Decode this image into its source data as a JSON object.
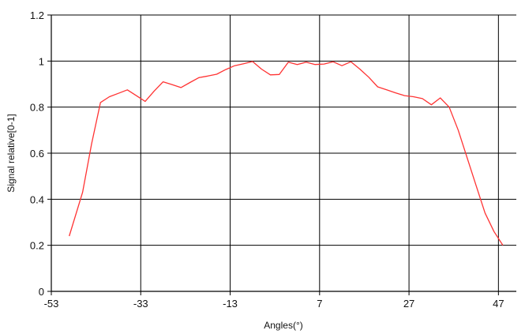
{
  "chart_data": {
    "type": "line",
    "title": "",
    "xlabel": "Angles(°)",
    "ylabel": "Signal relative[0-1]",
    "xlim": [
      -53,
      51
    ],
    "ylim": [
      0,
      1.2
    ],
    "xticks": [
      -53,
      -33,
      -13,
      7,
      27,
      47
    ],
    "xtick_labels": [
      "-53",
      "-33",
      "-13",
      "7",
      "27",
      "47"
    ],
    "yticks": [
      0,
      0.2,
      0.4,
      0.6,
      0.8,
      1,
      1.2
    ],
    "ytick_labels": [
      "0",
      "0.2",
      "0.4",
      "0.6",
      "0.8",
      "1",
      "1.2"
    ],
    "grid": true,
    "line_color": "#ff3333",
    "series": [
      {
        "x": [
          -49,
          -46,
          -44,
          -42,
          -40,
          -38,
          -36,
          -34,
          -32,
          -30,
          -28,
          -26,
          -24,
          -22,
          -20,
          -18,
          -16,
          -14,
          -12,
          -10,
          -8,
          -6,
          -4,
          -2,
          0,
          2,
          4,
          6,
          8,
          10,
          12,
          14,
          16,
          18,
          20,
          22,
          24,
          26,
          28,
          30,
          32,
          34,
          36,
          38,
          40,
          42,
          44,
          46,
          48
        ],
        "y": [
          0.24,
          0.43,
          0.64,
          0.82,
          0.845,
          0.86,
          0.875,
          0.85,
          0.825,
          0.87,
          0.91,
          0.898,
          0.885,
          0.907,
          0.928,
          0.935,
          0.943,
          0.963,
          0.98,
          0.988,
          0.998,
          0.965,
          0.94,
          0.942,
          0.995,
          0.985,
          0.995,
          0.985,
          0.987,
          0.997,
          0.98,
          0.997,
          0.965,
          0.93,
          0.888,
          0.875,
          0.862,
          0.85,
          0.845,
          0.837,
          0.81,
          0.84,
          0.8,
          0.7,
          0.58,
          0.46,
          0.34,
          0.26,
          0.2
        ]
      }
    ]
  }
}
